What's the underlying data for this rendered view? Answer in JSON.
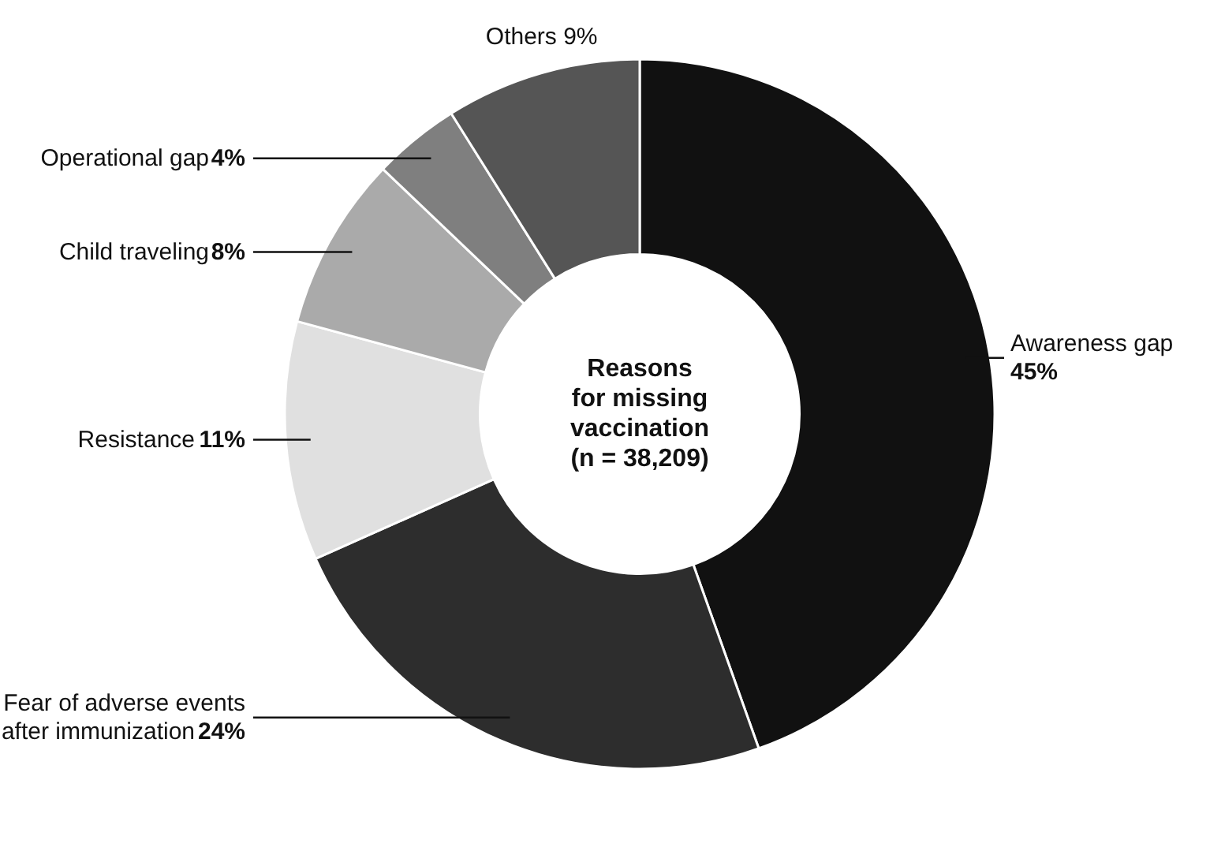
{
  "chart_data": {
    "type": "donut",
    "title": "Reasons\nfor missing\nvaccination\n(n = 38,209)",
    "categories": [
      "Awareness gap",
      "Fear of adverse events after immunization",
      "Resistance",
      "Child traveling",
      "Operational gap",
      "Others"
    ],
    "values": [
      45,
      24,
      11,
      8,
      4,
      9
    ],
    "value_labels": [
      "45%",
      "24%",
      "11%",
      "8%",
      "4%",
      "9%"
    ],
    "colors": [
      "#111111",
      "#2d2d2d",
      "#e0e0e0",
      "#aaaaaa",
      "#7f7f7f",
      "#555555"
    ]
  }
}
